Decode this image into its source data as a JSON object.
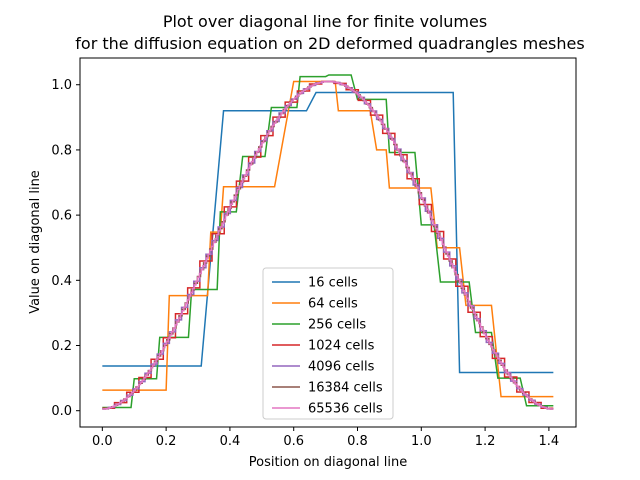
{
  "chart_data": {
    "type": "line",
    "title_lines": [
      "Plot over diagonal line for finite volumes",
      "for the diffusion equation on 2D deformed quadrangles meshes"
    ],
    "xlabel": "Position on diagonal line",
    "ylabel": "Value on diagonal line",
    "xlim": [
      -0.07,
      1.485
    ],
    "ylim": [
      -0.05,
      1.082
    ],
    "xticks": [
      0.0,
      0.2,
      0.4,
      0.6,
      0.8,
      1.0,
      1.2,
      1.4
    ],
    "xtick_labels": [
      "0.0",
      "0.2",
      "0.4",
      "0.6",
      "0.8",
      "1.0",
      "1.2",
      "1.4"
    ],
    "yticks": [
      0.0,
      0.2,
      0.4,
      0.6,
      0.8,
      1.0
    ],
    "ytick_labels": [
      "0.0",
      "0.2",
      "0.4",
      "0.6",
      "0.8",
      "1.0"
    ],
    "grid": false,
    "legend_position": "lower center",
    "x_end": 1.414,
    "series": [
      {
        "name": "16 cells",
        "color": "#1f77b4",
        "cells": 16
      },
      {
        "name": "64 cells",
        "color": "#ff7f0e",
        "cells": 64
      },
      {
        "name": "256 cells",
        "color": "#2ca02c",
        "cells": 256
      },
      {
        "name": "1024 cells",
        "color": "#d62728",
        "cells": 1024
      },
      {
        "name": "4096 cells",
        "color": "#9467bd",
        "cells": 4096
      },
      {
        "name": "16384 cells",
        "color": "#8c564b",
        "cells": 16384
      },
      {
        "name": "65536 cells",
        "color": "#e377c2",
        "cells": 65536
      }
    ],
    "step_data": {
      "16 cells": [
        [
          0.0,
          0.137
        ],
        [
          0.31,
          0.137
        ],
        [
          0.38,
          0.92
        ],
        [
          0.64,
          0.92
        ],
        [
          0.67,
          0.976
        ],
        [
          1.1,
          0.976
        ],
        [
          1.12,
          0.117
        ],
        [
          1.414,
          0.117
        ]
      ],
      "64 cells": [
        [
          0.0,
          0.063
        ],
        [
          0.2,
          0.063
        ],
        [
          0.21,
          0.353
        ],
        [
          0.33,
          0.353
        ],
        [
          0.34,
          0.548
        ],
        [
          0.37,
          0.548
        ],
        [
          0.38,
          0.687
        ],
        [
          0.54,
          0.687
        ],
        [
          0.6,
          1.01
        ],
        [
          0.73,
          1.01
        ],
        [
          0.74,
          0.92
        ],
        [
          0.84,
          0.92
        ],
        [
          0.86,
          0.8
        ],
        [
          0.89,
          0.8
        ],
        [
          0.9,
          0.683
        ],
        [
          1.03,
          0.683
        ],
        [
          1.05,
          0.5
        ],
        [
          1.12,
          0.5
        ],
        [
          1.14,
          0.323
        ],
        [
          1.22,
          0.323
        ],
        [
          1.25,
          0.043
        ],
        [
          1.414,
          0.043
        ]
      ],
      "256 cells": [
        [
          0.0,
          0.01
        ],
        [
          0.09,
          0.01
        ],
        [
          0.1,
          0.098
        ],
        [
          0.17,
          0.098
        ],
        [
          0.18,
          0.225
        ],
        [
          0.27,
          0.225
        ],
        [
          0.28,
          0.372
        ],
        [
          0.36,
          0.372
        ],
        [
          0.37,
          0.61
        ],
        [
          0.42,
          0.61
        ],
        [
          0.44,
          0.78
        ],
        [
          0.51,
          0.78
        ],
        [
          0.53,
          0.93
        ],
        [
          0.61,
          0.93
        ],
        [
          0.62,
          1.025
        ],
        [
          0.7,
          1.025
        ],
        [
          0.71,
          1.03
        ],
        [
          0.78,
          1.03
        ],
        [
          0.8,
          0.955
        ],
        [
          0.89,
          0.955
        ],
        [
          0.9,
          0.792
        ],
        [
          0.98,
          0.792
        ],
        [
          1.0,
          0.57
        ],
        [
          1.04,
          0.57
        ],
        [
          1.06,
          0.395
        ],
        [
          1.15,
          0.395
        ],
        [
          1.17,
          0.24
        ],
        [
          1.22,
          0.24
        ],
        [
          1.24,
          0.1
        ],
        [
          1.31,
          0.1
        ],
        [
          1.33,
          0.015
        ],
        [
          1.414,
          0.015
        ]
      ]
    }
  }
}
